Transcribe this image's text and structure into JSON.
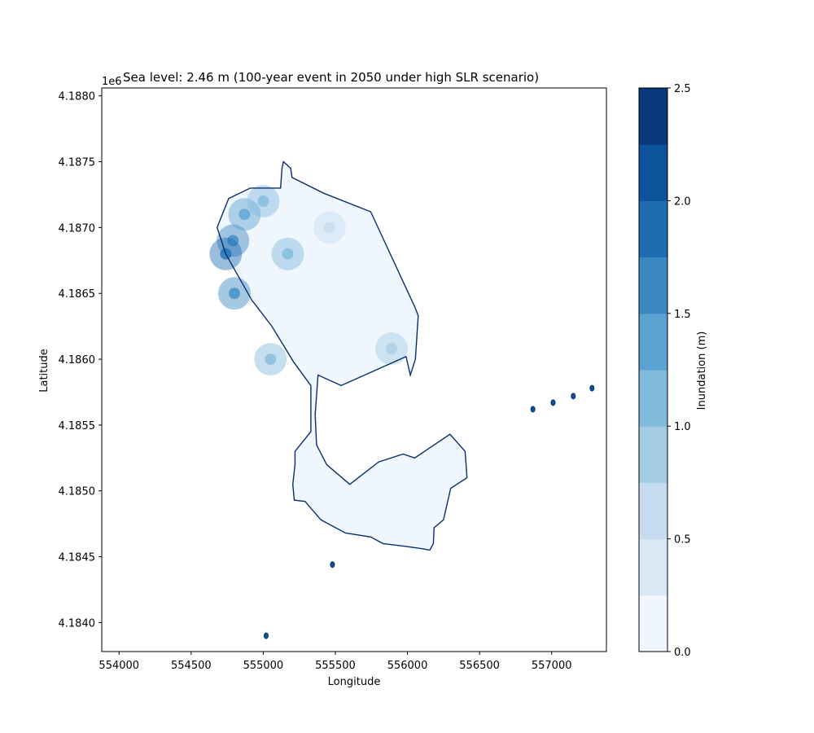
{
  "chart_data": {
    "type": "heatmap",
    "title": "Sea level: 2.46 m (100-year event in 2050 under high SLR scenario)",
    "xlabel": "Longitude",
    "ylabel": "Latitude",
    "y_offset_label": "1e6",
    "xlim": [
      553880,
      557380
    ],
    "ylim": [
      4.18378,
      4.18806
    ],
    "x_ticks": [
      554000,
      554500,
      555000,
      555500,
      556000,
      556500,
      557000
    ],
    "x_tick_labels": [
      "554000",
      "554500",
      "555000",
      "555500",
      "556000",
      "556500",
      "557000"
    ],
    "y_ticks": [
      4.184,
      4.1845,
      4.185,
      4.1855,
      4.186,
      4.1865,
      4.187,
      4.1875,
      4.188
    ],
    "y_tick_labels": [
      "4.1840",
      "4.1845",
      "4.1850",
      "4.1855",
      "4.1860",
      "4.1865",
      "4.1870",
      "4.1875",
      "4.1880"
    ],
    "colorbar": {
      "label": "Inundation (m)",
      "range": [
        0,
        2.5
      ],
      "ticks": [
        0,
        0.5,
        1.0,
        1.5,
        2.0,
        2.5
      ],
      "tick_labels": [
        "0.0",
        "0.5",
        "1.0",
        "1.5",
        "2.0",
        "2.5"
      ],
      "levels": [
        0,
        0.25,
        0.5,
        0.75,
        1.0,
        1.25,
        1.5,
        1.75,
        2.0,
        2.25,
        2.5
      ],
      "colors": [
        "#f0f6fd",
        "#dae8f6",
        "#c6dbef",
        "#a3cce3",
        "#7fb9dc",
        "#5aa2d0",
        "#3a87c2",
        "#1f6cb1",
        "#0d539b",
        "#08397a"
      ]
    },
    "grid": false,
    "outline_color": "#08306b",
    "coastline": [
      [
        555140,
        4.1875
      ],
      [
        555190,
        4.18745
      ],
      [
        555200,
        4.18738
      ],
      [
        555420,
        4.18726
      ],
      [
        555745,
        4.18712
      ],
      [
        556050,
        4.1864
      ],
      [
        556075,
        4.18633
      ],
      [
        556055,
        4.186
      ],
      [
        556020,
        4.18588
      ],
      [
        555990,
        4.18602
      ],
      [
        555540,
        4.1858
      ],
      [
        555380,
        4.18588
      ],
      [
        555360,
        4.18558
      ],
      [
        555370,
        4.18535
      ],
      [
        555440,
        4.1852
      ],
      [
        555600,
        4.18505
      ],
      [
        555800,
        4.18522
      ],
      [
        555970,
        4.18528
      ],
      [
        556050,
        4.18525
      ],
      [
        556295,
        4.18543
      ],
      [
        556400,
        4.1853
      ],
      [
        556413,
        4.1851
      ],
      [
        556300,
        4.18502
      ],
      [
        556250,
        4.18478
      ],
      [
        556185,
        4.18472
      ],
      [
        556180,
        4.1846
      ],
      [
        556155,
        4.18455
      ],
      [
        556110,
        4.18456
      ],
      [
        555980,
        4.18458
      ],
      [
        555830,
        4.1846
      ],
      [
        555745,
        4.18465
      ],
      [
        555570,
        4.18468
      ],
      [
        555400,
        4.18478
      ],
      [
        555290,
        4.18492
      ],
      [
        555215,
        4.18493
      ],
      [
        555205,
        4.18505
      ],
      [
        555220,
        4.1852
      ],
      [
        555220,
        4.1853
      ],
      [
        555330,
        4.18545
      ],
      [
        555330,
        4.18555
      ],
      [
        555330,
        4.1858
      ],
      [
        555210,
        4.18598
      ],
      [
        555060,
        4.18625
      ],
      [
        554920,
        4.18645
      ],
      [
        554740,
        4.1868
      ],
      [
        554680,
        4.187
      ],
      [
        554760,
        4.18722
      ],
      [
        554910,
        4.1873
      ],
      [
        555120,
        4.1873
      ],
      [
        555130,
        4.18745
      ]
    ],
    "islets": [
      [
        556870,
        4.18562
      ],
      [
        557010,
        4.18567
      ],
      [
        557150,
        4.18572
      ],
      [
        557280,
        4.18578
      ],
      [
        555480,
        4.18444
      ],
      [
        555020,
        4.1839
      ]
    ],
    "hotspots": [
      [
        554790,
        4.1869,
        1.6
      ],
      [
        554740,
        4.1868,
        1.8
      ],
      [
        554800,
        4.1865,
        1.5
      ],
      [
        554870,
        4.1871,
        1.4
      ],
      [
        555000,
        4.1872,
        1.2
      ],
      [
        555050,
        4.186,
        1.0
      ],
      [
        555890,
        4.18608,
        0.8
      ],
      [
        555170,
        4.1868,
        1.0
      ],
      [
        555460,
        4.187,
        0.6
      ]
    ]
  }
}
